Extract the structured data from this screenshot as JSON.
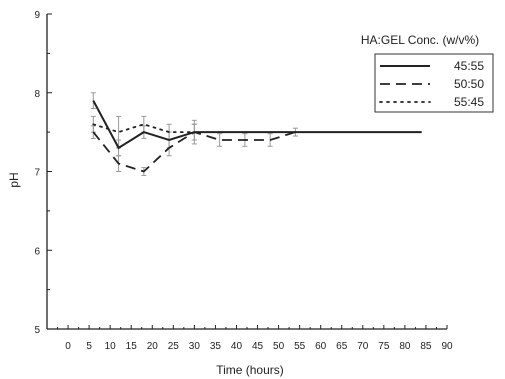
{
  "chart_data": {
    "type": "line",
    "xlabel": "Time (hours)",
    "ylabel": "pH",
    "xlim": [
      -5,
      90
    ],
    "ylim": [
      5,
      9
    ],
    "x_ticks": [
      0,
      5,
      10,
      15,
      20,
      25,
      30,
      35,
      40,
      45,
      50,
      55,
      60,
      65,
      70,
      75,
      80,
      85,
      90
    ],
    "y_ticks": [
      5,
      6,
      7,
      8,
      9
    ],
    "grid": false,
    "legend": {
      "title": "HA:GEL Conc. (w/v%)",
      "position": "top-right"
    },
    "series": [
      {
        "name": "45:55",
        "style": "solid",
        "color": "#222222",
        "x": [
          6,
          12,
          18,
          24,
          30,
          36,
          42,
          48,
          54,
          60,
          66,
          72,
          78,
          84
        ],
        "y": [
          7.9,
          7.3,
          7.5,
          7.4,
          7.5,
          7.5,
          7.5,
          7.5,
          7.5,
          7.5,
          7.5,
          7.5,
          7.5,
          7.5
        ],
        "err": [
          0.1,
          0.1,
          0.08,
          0.1,
          0.15,
          0,
          0,
          0,
          0,
          0,
          0,
          0,
          0,
          0
        ]
      },
      {
        "name": "50:50",
        "style": "dashed",
        "color": "#222222",
        "x": [
          6,
          12,
          18,
          24,
          30,
          36,
          42,
          48,
          54
        ],
        "y": [
          7.5,
          7.1,
          7.0,
          7.3,
          7.5,
          7.4,
          7.4,
          7.4,
          7.5
        ],
        "err": [
          0.08,
          0.1,
          0.05,
          0.1,
          0.1,
          0.08,
          0.08,
          0.08,
          0.05
        ]
      },
      {
        "name": "55:45",
        "style": "dotted",
        "color": "#222222",
        "x": [
          6,
          12,
          18,
          24,
          30
        ],
        "y": [
          7.6,
          7.5,
          7.6,
          7.5,
          7.5
        ],
        "err": [
          0.1,
          0.2,
          0.1,
          0.1,
          0.1
        ]
      }
    ]
  }
}
